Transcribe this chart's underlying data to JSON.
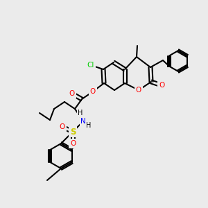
{
  "bg_color": "#ebebeb",
  "bond_color": "#000000",
  "bond_width": 1.5,
  "atom_colors": {
    "O": "#ff0000",
    "N": "#0000ff",
    "Cl": "#00cc00",
    "S": "#cccc00",
    "C": "#000000",
    "H": "#000000"
  },
  "font_size": 7.5,
  "figsize": [
    3.0,
    3.0
  ],
  "dpi": 100
}
